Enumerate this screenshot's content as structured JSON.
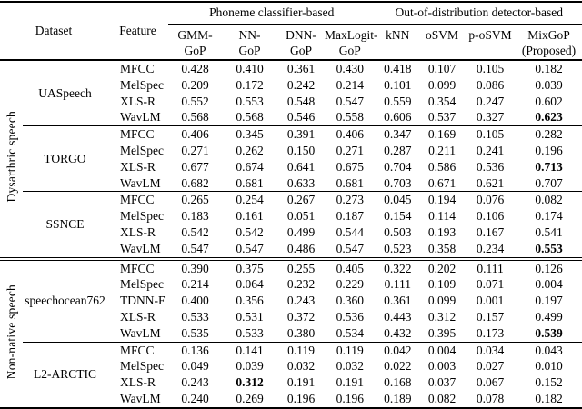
{
  "header": {
    "dataset": "Dataset",
    "feature": "Feature",
    "group_phoneme": "Phoneme classifier-based",
    "group_ood": "Out-of-distribution detector-based",
    "methods": [
      {
        "line1": "GMM-",
        "line2": "GoP"
      },
      {
        "line1": "NN-",
        "line2": "GoP"
      },
      {
        "line1": "DNN-",
        "line2": "GoP"
      },
      {
        "line1": "MaxLogit-",
        "line2": "GoP"
      },
      {
        "line1": "kNN",
        "line2": ""
      },
      {
        "line1": "oSVM",
        "line2": ""
      },
      {
        "line1": "p-oSVM",
        "line2": ""
      },
      {
        "line1": "MixGoP",
        "line2": "(Proposed)"
      }
    ]
  },
  "sections": [
    {
      "label": "Dysarthric speech",
      "datasets": [
        {
          "name": "UASpeech",
          "rows": [
            {
              "feature": "MFCC",
              "values": [
                "0.428",
                "0.410",
                "0.361",
                "0.430",
                "0.418",
                "0.107",
                "0.105",
                "0.182"
              ],
              "bold": []
            },
            {
              "feature": "MelSpec",
              "values": [
                "0.209",
                "0.172",
                "0.242",
                "0.214",
                "0.101",
                "0.099",
                "0.086",
                "0.039"
              ],
              "bold": []
            },
            {
              "feature": "XLS-R",
              "values": [
                "0.552",
                "0.553",
                "0.548",
                "0.547",
                "0.559",
                "0.354",
                "0.247",
                "0.602"
              ],
              "bold": []
            },
            {
              "feature": "WavLM",
              "values": [
                "0.568",
                "0.568",
                "0.546",
                "0.558",
                "0.606",
                "0.537",
                "0.327",
                "0.623"
              ],
              "bold": [
                7
              ]
            }
          ]
        },
        {
          "name": "TORGO",
          "rows": [
            {
              "feature": "MFCC",
              "values": [
                "0.406",
                "0.345",
                "0.391",
                "0.406",
                "0.347",
                "0.169",
                "0.105",
                "0.282"
              ],
              "bold": []
            },
            {
              "feature": "MelSpec",
              "values": [
                "0.271",
                "0.262",
                "0.150",
                "0.271",
                "0.287",
                "0.211",
                "0.241",
                "0.196"
              ],
              "bold": []
            },
            {
              "feature": "XLS-R",
              "values": [
                "0.677",
                "0.674",
                "0.641",
                "0.675",
                "0.704",
                "0.586",
                "0.536",
                "0.713"
              ],
              "bold": [
                7
              ]
            },
            {
              "feature": "WavLM",
              "values": [
                "0.682",
                "0.681",
                "0.633",
                "0.681",
                "0.703",
                "0.671",
                "0.621",
                "0.707"
              ],
              "bold": []
            }
          ]
        },
        {
          "name": "SSNCE",
          "rows": [
            {
              "feature": "MFCC",
              "values": [
                "0.265",
                "0.254",
                "0.267",
                "0.273",
                "0.045",
                "0.194",
                "0.076",
                "0.082"
              ],
              "bold": []
            },
            {
              "feature": "MelSpec",
              "values": [
                "0.183",
                "0.161",
                "0.051",
                "0.187",
                "0.154",
                "0.114",
                "0.106",
                "0.174"
              ],
              "bold": []
            },
            {
              "feature": "XLS-R",
              "values": [
                "0.542",
                "0.542",
                "0.499",
                "0.544",
                "0.503",
                "0.193",
                "0.167",
                "0.541"
              ],
              "bold": []
            },
            {
              "feature": "WavLM",
              "values": [
                "0.547",
                "0.547",
                "0.486",
                "0.547",
                "0.523",
                "0.358",
                "0.234",
                "0.553"
              ],
              "bold": [
                7
              ]
            }
          ]
        }
      ]
    },
    {
      "label": "Non-native speech",
      "datasets": [
        {
          "name": "speechocean762",
          "rows": [
            {
              "feature": "MFCC",
              "values": [
                "0.390",
                "0.375",
                "0.255",
                "0.405",
                "0.322",
                "0.202",
                "0.111",
                "0.126"
              ],
              "bold": []
            },
            {
              "feature": "MelSpec",
              "values": [
                "0.214",
                "0.064",
                "0.232",
                "0.229",
                "0.111",
                "0.109",
                "0.071",
                "0.004"
              ],
              "bold": []
            },
            {
              "feature": "TDNN-F",
              "values": [
                "0.400",
                "0.356",
                "0.243",
                "0.360",
                "0.361",
                "0.099",
                "0.001",
                "0.197"
              ],
              "bold": []
            },
            {
              "feature": "XLS-R",
              "values": [
                "0.533",
                "0.531",
                "0.372",
                "0.536",
                "0.443",
                "0.312",
                "0.157",
                "0.499"
              ],
              "bold": []
            },
            {
              "feature": "WavLM",
              "values": [
                "0.535",
                "0.533",
                "0.380",
                "0.534",
                "0.432",
                "0.395",
                "0.173",
                "0.539"
              ],
              "bold": [
                7
              ]
            }
          ]
        },
        {
          "name": "L2-ARCTIC",
          "rows": [
            {
              "feature": "MFCC",
              "values": [
                "0.136",
                "0.141",
                "0.119",
                "0.119",
                "0.042",
                "0.004",
                "0.034",
                "0.043"
              ],
              "bold": []
            },
            {
              "feature": "MelSpec",
              "values": [
                "0.049",
                "0.039",
                "0.032",
                "0.032",
                "0.022",
                "0.003",
                "0.027",
                "0.010"
              ],
              "bold": []
            },
            {
              "feature": "XLS-R",
              "values": [
                "0.243",
                "0.312",
                "0.191",
                "0.191",
                "0.168",
                "0.037",
                "0.067",
                "0.152"
              ],
              "bold": [
                1
              ]
            },
            {
              "feature": "WavLM",
              "values": [
                "0.240",
                "0.269",
                "0.196",
                "0.196",
                "0.189",
                "0.082",
                "0.078",
                "0.182"
              ],
              "bold": []
            }
          ]
        }
      ]
    }
  ]
}
